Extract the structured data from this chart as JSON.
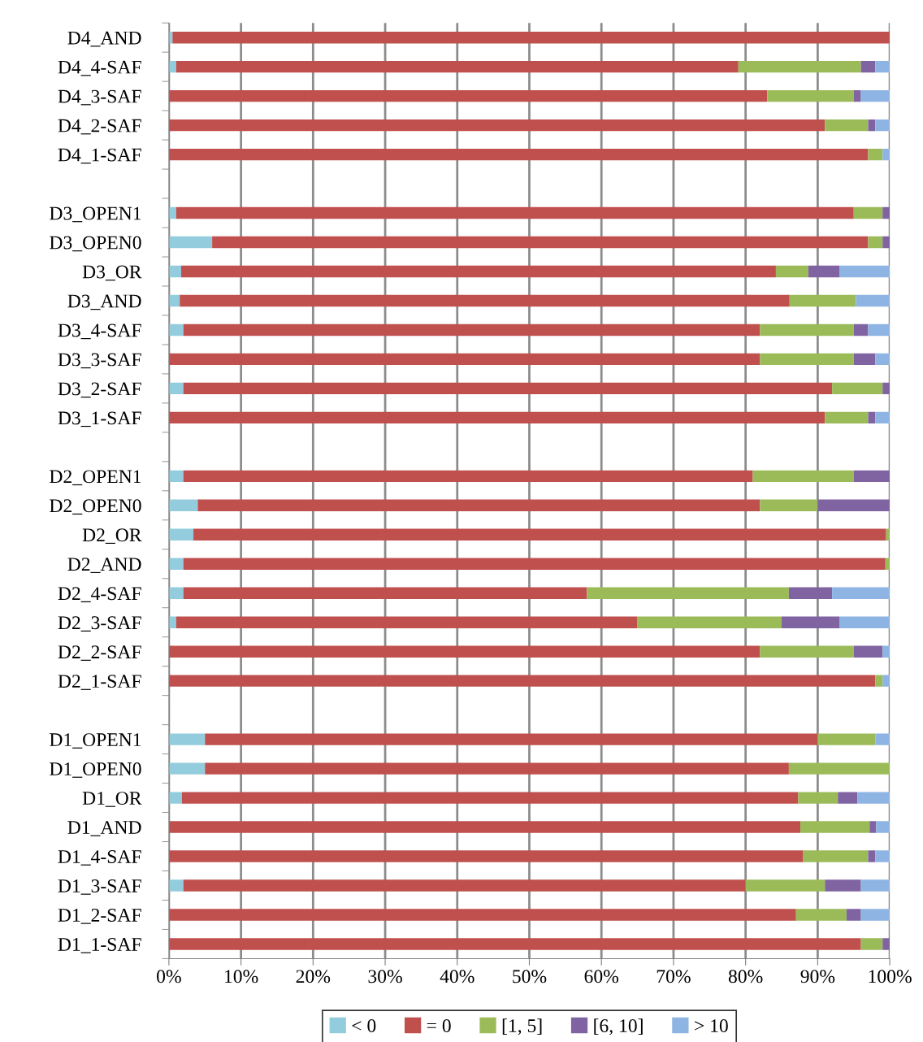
{
  "chart_data": {
    "type": "bar",
    "orientation": "horizontal",
    "stacked": true,
    "categories": [
      "D4_AND",
      "D4_4-SAF",
      "D4_3-SAF",
      "D4_2-SAF",
      "D4_1-SAF",
      null,
      "D3_OPEN1",
      "D3_OPEN0",
      "D3_OR",
      "D3_AND",
      "D3_4-SAF",
      "D3_3-SAF",
      "D3_2-SAF",
      "D3_1-SAF",
      null,
      "D2_OPEN1",
      "D2_OPEN0",
      "D2_OR",
      "D2_AND",
      "D2_4-SAF",
      "D2_3-SAF",
      "D2_2-SAF",
      "D2_1-SAF",
      null,
      "D1_OPEN1",
      "D1_OPEN0",
      "D1_OR",
      "D1_AND",
      "D1_4-SAF",
      "D1_3-SAF",
      "D1_2-SAF",
      "D1_1-SAF"
    ],
    "series": [
      {
        "name": "< 0",
        "color": "#93cddd",
        "values": [
          0.5,
          1,
          0,
          0,
          0,
          null,
          1,
          6,
          1.7,
          1.5,
          2,
          0,
          2,
          0,
          null,
          2,
          4,
          3.4,
          2,
          2,
          1,
          0,
          0,
          null,
          5,
          5,
          1.8,
          0,
          0,
          2,
          0,
          0
        ]
      },
      {
        "name": "= 0",
        "color": "#c0504d",
        "values": [
          99.5,
          78,
          83,
          91,
          97,
          null,
          94,
          91,
          82.5,
          84.6,
          80,
          82,
          90,
          91,
          null,
          79,
          78,
          96.1,
          97.4,
          56,
          64,
          82,
          98,
          null,
          85,
          81,
          85.5,
          87.6,
          88,
          78,
          87,
          96
        ]
      },
      {
        "name": "[1, 5]",
        "color": "#9bbb59",
        "values": [
          0,
          17,
          12,
          6,
          2,
          null,
          4,
          2,
          4.5,
          9.2,
          13,
          13,
          7,
          6,
          null,
          14,
          8,
          0.5,
          0.6,
          28,
          20,
          13,
          1,
          null,
          8,
          14,
          5.5,
          9.6,
          9,
          11,
          7,
          3
        ]
      },
      {
        "name": "[6, 10]",
        "color": "#8064a2",
        "values": [
          0,
          2,
          1,
          1,
          0,
          null,
          1,
          1,
          4.3,
          0,
          2,
          3,
          1,
          1,
          null,
          5,
          10,
          0,
          0,
          6,
          8,
          4,
          0,
          null,
          0,
          0,
          2.7,
          0.9,
          1,
          5,
          2,
          1
        ]
      },
      {
        "name": "> 10",
        "color": "#8eb4e3",
        "values": [
          0,
          2,
          4,
          2,
          1,
          null,
          0,
          0,
          7,
          4.7,
          3,
          2,
          0,
          2,
          null,
          0,
          0,
          0,
          0,
          8,
          7,
          1,
          1,
          null,
          2,
          0,
          4.5,
          1.9,
          2,
          4,
          4,
          0
        ]
      }
    ],
    "xlim": [
      0,
      100
    ],
    "xticks": [
      {
        "value": 0,
        "label": "0%"
      },
      {
        "value": 10,
        "label": "10%"
      },
      {
        "value": 20,
        "label": "20%"
      },
      {
        "value": 30,
        "label": "30%"
      },
      {
        "value": 40,
        "label": "40%"
      },
      {
        "value": 50,
        "label": "50%"
      },
      {
        "value": 60,
        "label": "60%"
      },
      {
        "value": 70,
        "label": "70%"
      },
      {
        "value": 80,
        "label": "80%"
      },
      {
        "value": 90,
        "label": "90%"
      },
      {
        "value": 100,
        "label": "100%"
      }
    ],
    "grid": "x",
    "legend": "bottom"
  }
}
